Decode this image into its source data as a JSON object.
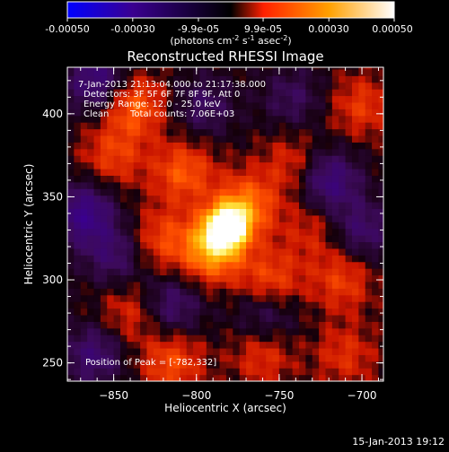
{
  "colorbar": {
    "tick_labels": [
      "-0.00050",
      "-0.00030",
      "-9.9e-05",
      "9.9e-05",
      "0.00030",
      "0.00050"
    ],
    "tick_values": [
      -0.0005,
      -0.0003,
      -9.9e-05,
      9.9e-05,
      0.0003,
      0.0005
    ],
    "range": [
      -0.0005,
      0.0005
    ],
    "units_text": "(photons cm",
    "units_exp1": "-2",
    "units_mid": " s",
    "units_exp2": "-1",
    "units_tail": " asec",
    "units_exp3": "-2",
    "units_close": ")",
    "colors": [
      "#0000ff",
      "#3a0090",
      "#000000",
      "#ff2000",
      "#ffa000",
      "#ffffff"
    ]
  },
  "plot_title": "Reconstructed RHESSI Image",
  "info": {
    "time_range": "7-Jan-2013 21:13:04.000 to 21:17:38.000",
    "detectors": "Detectors: 3F 5F 6F 7F 8F 9F, Att 0",
    "energy": "Energy Range: 12.0 - 25.0 keV",
    "clean": "Clean",
    "counts": "Total counts: 7.06E+03"
  },
  "peak_label": "Position of Peak = [-782,332]",
  "footer_date": "15-Jan-2013 19:12",
  "chart_data": {
    "type": "heatmap",
    "title": "Reconstructed RHESSI Image",
    "xlabel": "Heliocentric X (arcsec)",
    "ylabel": "Heliocentric Y (arcsec)",
    "xlim": [
      -878,
      -687
    ],
    "ylim": [
      239,
      428
    ],
    "x_ticks": [
      -850,
      -800,
      -750,
      -700
    ],
    "x_tick_labels": [
      "−850",
      "−800",
      "−750",
      "−700"
    ],
    "y_ticks": [
      250,
      300,
      350,
      400
    ],
    "y_tick_labels": [
      "250",
      "300",
      "350",
      "400"
    ],
    "colormap": "blue-purple-black-red-yellow-white",
    "peak": {
      "x": -782,
      "y": 332,
      "value": 0.0005
    },
    "sources": [
      {
        "x": -782,
        "y": 332,
        "value": 0.0005
      },
      {
        "x": -790,
        "y": 318,
        "value": 0.00032
      },
      {
        "x": -770,
        "y": 345,
        "value": 0.00025
      },
      {
        "x": -838,
        "y": 405,
        "value": 0.00022
      },
      {
        "x": -808,
        "y": 365,
        "value": 0.0002
      },
      {
        "x": -755,
        "y": 300,
        "value": 0.00018
      },
      {
        "x": -712,
        "y": 300,
        "value": 0.00015
      },
      {
        "x": -815,
        "y": 250,
        "value": 0.00018
      },
      {
        "x": -850,
        "y": 375,
        "value": 0.00015
      },
      {
        "x": -820,
        "y": 325,
        "value": 0.00016
      },
      {
        "x": -742,
        "y": 370,
        "value": 0.00012
      },
      {
        "x": -700,
        "y": 405,
        "value": 0.00014
      },
      {
        "x": -710,
        "y": 255,
        "value": 0.00012
      },
      {
        "x": -760,
        "y": 255,
        "value": 0.00013
      },
      {
        "x": -840,
        "y": 280,
        "value": 0.00012
      },
      {
        "x": -730,
        "y": 330,
        "value": 0.0001
      },
      {
        "x": -860,
        "y": 420,
        "value": -0.00022
      },
      {
        "x": -868,
        "y": 340,
        "value": -0.00025
      },
      {
        "x": -720,
        "y": 360,
        "value": -0.00022
      },
      {
        "x": -815,
        "y": 285,
        "value": -0.00016
      },
      {
        "x": -850,
        "y": 315,
        "value": -0.00015
      },
      {
        "x": -758,
        "y": 280,
        "value": -0.00014
      },
      {
        "x": -700,
        "y": 330,
        "value": -0.00016
      },
      {
        "x": -795,
        "y": 405,
        "value": -0.00013
      },
      {
        "x": -862,
        "y": 255,
        "value": -0.00018
      },
      {
        "x": -742,
        "y": 410,
        "value": -0.00012
      }
    ]
  }
}
